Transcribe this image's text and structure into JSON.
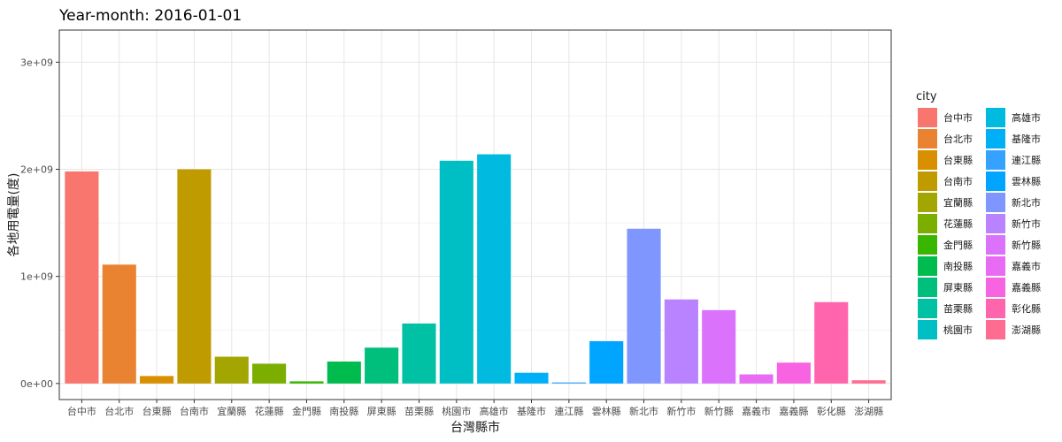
{
  "chart_data": {
    "type": "bar",
    "title": "Year-month: 2016-01-01",
    "xlabel": "台灣縣市",
    "ylabel": "各地用電量(度)",
    "ylim": [
      -150000000,
      3300000000
    ],
    "yticks": [
      0,
      1000000000,
      2000000000,
      3000000000
    ],
    "ytick_labels": [
      "0e+00",
      "1e+09",
      "2e+09",
      "3e+09"
    ],
    "grid": true,
    "legend": {
      "title": "city",
      "position": "right",
      "columns": 2
    },
    "categories": [
      "台中市",
      "台北市",
      "台東縣",
      "台南市",
      "宜蘭縣",
      "花蓮縣",
      "金門縣",
      "南投縣",
      "屏東縣",
      "苗栗縣",
      "桃園市",
      "高雄市",
      "基隆市",
      "連江縣",
      "雲林縣",
      "新北市",
      "新竹市",
      "新竹縣",
      "嘉義市",
      "嘉義縣",
      "彰化縣",
      "澎湖縣"
    ],
    "values": [
      1980000000,
      1110000000,
      70000000,
      2000000000,
      250000000,
      185000000,
      20000000,
      205000000,
      335000000,
      560000000,
      2080000000,
      2140000000,
      100000000,
      10000000,
      395000000,
      1445000000,
      785000000,
      685000000,
      85000000,
      195000000,
      760000000,
      30000000
    ],
    "colors": [
      "#F8766D",
      "#EA8331",
      "#D89000",
      "#C09B00",
      "#A3A500",
      "#7CAE00",
      "#39B600",
      "#00BB4E",
      "#00BF7D",
      "#00C1A3",
      "#00BFC4",
      "#00BAE0",
      "#00B0F6",
      "#35A2FF",
      "#00A5FF",
      "#7F96FF",
      "#B983FF",
      "#DB72FB",
      "#E76BF3",
      "#F763E0",
      "#FF65AC",
      "#FF6C91"
    ],
    "legend_labels": [
      "台中市",
      "台北市",
      "台東縣",
      "台南市",
      "宜蘭縣",
      "花蓮縣",
      "金門縣",
      "南投縣",
      "屏東縣",
      "苗栗縣",
      "桃園市",
      "高雄市",
      "基隆市",
      "連江縣",
      "雲林縣",
      "新北市",
      "新竹市",
      "新竹縣",
      "嘉義市",
      "嘉義縣",
      "彰化縣",
      "澎湖縣"
    ],
    "legend_colors": [
      "#F8766D",
      "#EA8331",
      "#D89000",
      "#C09B00",
      "#A3A500",
      "#7CAE00",
      "#39B600",
      "#00BB4E",
      "#00BF7D",
      "#00C1A3",
      "#00BFC4",
      "#00BAE0",
      "#00B0F6",
      "#35A2FF",
      "#00A5FF",
      "#7F96FF",
      "#B983FF",
      "#DB72FB",
      "#E76BF3",
      "#F763E0",
      "#FF65AC",
      "#FF6C91"
    ]
  }
}
